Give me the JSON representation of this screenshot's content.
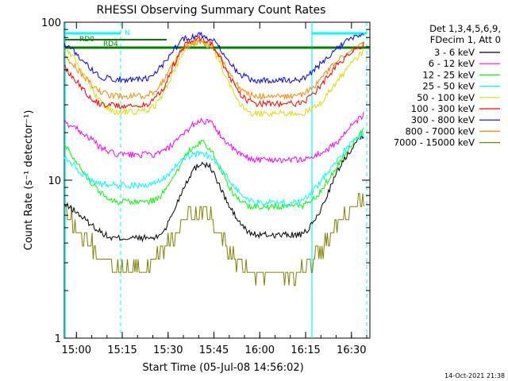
{
  "chart_data": {
    "type": "line",
    "title": "RHESSI Observing Summary Count Rates",
    "xlabel": "Start Time (05-Jul-08 14:56:02)",
    "ylabel": "Count Rate (s⁻¹ detector⁻¹)",
    "yscale": "log",
    "ylim": [
      1,
      100
    ],
    "xlim_minutes": [
      0,
      100
    ],
    "x_ticks": [
      "15:00",
      "15:15",
      "15:30",
      "15:45",
      "16:00",
      "16:15",
      "16:30"
    ],
    "y_ticks": [
      "1",
      "10",
      "100"
    ],
    "legend_header": [
      "Det 1,3,4,5,6,9,",
      "FDecim 1, Att 0"
    ],
    "legend_position": "right",
    "footer_stamp": "14-Oct-2021 21:38",
    "flag_labels": [
      "N",
      "RD0",
      "RD4"
    ],
    "series": [
      {
        "name": "3 - 6 keV",
        "color": "#000000",
        "x": [
          0,
          3,
          6,
          9,
          12,
          15,
          18,
          21,
          24,
          27,
          30,
          33,
          36,
          39,
          42,
          45,
          48,
          51,
          54,
          57,
          60,
          63,
          66,
          69,
          72,
          75,
          78,
          81,
          84,
          87,
          90,
          93,
          96,
          98
        ],
        "y": [
          7.0,
          6.5,
          5.8,
          5.2,
          4.7,
          4.3,
          4.3,
          4.3,
          4.3,
          4.3,
          4.3,
          4.9,
          6.5,
          9.0,
          11.5,
          13.0,
          12.0,
          9.0,
          6.8,
          5.5,
          4.7,
          4.5,
          4.5,
          4.5,
          4.5,
          4.5,
          4.5,
          5.2,
          6.5,
          9.0,
          12.0,
          15.0,
          18.0,
          19.5
        ]
      },
      {
        "name": "6 - 12 keV",
        "color": "#ff00ff",
        "x": [
          0,
          3,
          6,
          9,
          12,
          15,
          18,
          21,
          24,
          27,
          30,
          33,
          36,
          39,
          42,
          45,
          48,
          51,
          54,
          57,
          60,
          63,
          66,
          69,
          72,
          75,
          78,
          81,
          84,
          87,
          90,
          93,
          96,
          98
        ],
        "y": [
          23.0,
          22.0,
          20.0,
          18.0,
          16.0,
          15.0,
          14.5,
          14.5,
          14.5,
          14.5,
          14.5,
          15.5,
          17.0,
          19.5,
          22.5,
          24.0,
          23.0,
          19.5,
          16.5,
          14.8,
          13.8,
          13.5,
          13.5,
          13.5,
          13.5,
          13.5,
          13.5,
          14.0,
          14.8,
          16.0,
          18.0,
          21.0,
          24.0,
          26.0
        ]
      },
      {
        "name": "12 - 25 keV",
        "color": "#00ff00",
        "x": [
          0,
          3,
          6,
          9,
          12,
          15,
          18,
          21,
          24,
          27,
          30,
          33,
          36,
          39,
          42,
          45,
          48,
          51,
          54,
          57,
          60,
          63,
          66,
          69,
          72,
          75,
          78,
          81,
          84,
          87,
          90,
          93,
          96,
          98
        ],
        "y": [
          17.0,
          14.0,
          11.5,
          9.5,
          8.3,
          7.5,
          7.3,
          7.3,
          7.3,
          7.3,
          7.5,
          8.5,
          10.5,
          13.5,
          16.5,
          17.5,
          15.5,
          12.0,
          9.0,
          7.5,
          6.9,
          6.8,
          6.8,
          6.8,
          6.8,
          6.8,
          6.9,
          7.5,
          8.5,
          10.5,
          13.0,
          16.0,
          19.0,
          21.0
        ]
      },
      {
        "name": "25 - 50 keV",
        "color": "#00ffff",
        "x": [
          0,
          3,
          6,
          9,
          12,
          15,
          18,
          21,
          24,
          27,
          30,
          33,
          36,
          39,
          42,
          45,
          48,
          51,
          54,
          57,
          60,
          63,
          66,
          69,
          72,
          75,
          78,
          81,
          84,
          87,
          90,
          93,
          96,
          98
        ],
        "y": [
          14.0,
          12.5,
          11.0,
          10.0,
          9.5,
          9.3,
          9.3,
          9.3,
          9.3,
          9.3,
          9.5,
          10.5,
          12.0,
          13.5,
          14.5,
          14.8,
          14.0,
          12.0,
          10.0,
          8.5,
          7.5,
          7.2,
          7.2,
          7.2,
          7.2,
          7.2,
          7.4,
          8.3,
          9.8,
          11.8,
          14.0,
          16.5,
          18.5,
          19.5
        ]
      },
      {
        "name": "50 - 100 keV",
        "color": "#dddd00",
        "x": [
          0,
          3,
          6,
          9,
          12,
          15,
          18,
          21,
          24,
          27,
          30,
          33,
          36,
          39,
          42,
          45,
          48,
          51,
          54,
          57,
          60,
          63,
          66,
          69,
          72,
          75,
          78,
          81,
          84,
          87,
          90,
          93,
          96,
          98
        ],
        "y": [
          68.0,
          60.0,
          48.0,
          38.0,
          31.0,
          27.5,
          27.0,
          27.0,
          27.0,
          27.5,
          30.0,
          37.0,
          50.0,
          65.0,
          74.0,
          76.0,
          70.0,
          55.0,
          40.0,
          31.0,
          27.0,
          26.5,
          26.5,
          26.5,
          26.5,
          26.5,
          26.5,
          28.0,
          31.0,
          37.0,
          44.0,
          52.0,
          60.0,
          66.0
        ]
      },
      {
        "name": "100 - 300 keV",
        "color": "#ff0000",
        "x": [
          0,
          3,
          6,
          9,
          12,
          15,
          18,
          21,
          24,
          27,
          30,
          33,
          36,
          39,
          42,
          45,
          48,
          51,
          54,
          57,
          60,
          63,
          66,
          69,
          72,
          75,
          78,
          81,
          84,
          87,
          90,
          93,
          96,
          98
        ],
        "y": [
          52.0,
          45.0,
          38.0,
          33.0,
          30.0,
          30.0,
          29.5,
          29.5,
          29.5,
          30.0,
          33.0,
          40.0,
          55.0,
          70.0,
          78.0,
          80.0,
          74.0,
          60.0,
          45.0,
          36.0,
          32.0,
          30.5,
          30.5,
          30.5,
          30.5,
          30.5,
          31.0,
          34.0,
          40.0,
          47.0,
          55.0,
          62.0,
          68.0,
          72.0
        ]
      },
      {
        "name": "300 - 800 keV",
        "color": "#0000ff",
        "x": [
          0,
          3,
          6,
          9,
          12,
          15,
          18,
          21,
          24,
          27,
          30,
          33,
          36,
          39,
          42,
          45,
          48,
          51,
          54,
          57,
          60,
          63,
          66,
          69,
          72,
          75,
          78,
          81,
          84,
          87,
          90,
          93,
          96,
          98
        ],
        "y": [
          72.0,
          66.0,
          58.0,
          50.0,
          45.0,
          44.0,
          43.5,
          43.5,
          43.5,
          44.0,
          48.0,
          56.0,
          68.0,
          78.0,
          82.0,
          83.0,
          79.0,
          68.0,
          56.0,
          48.0,
          44.0,
          43.0,
          43.0,
          43.0,
          43.0,
          43.0,
          44.0,
          48.0,
          55.0,
          62.0,
          70.0,
          77.0,
          82.0,
          85.0
        ]
      },
      {
        "name": "800 - 7000 keV",
        "color": "#ff8800",
        "x": [
          0,
          3,
          6,
          9,
          12,
          15,
          18,
          21,
          24,
          27,
          30,
          33,
          36,
          39,
          42,
          45,
          48,
          51,
          54,
          57,
          60,
          63,
          66,
          69,
          72,
          75,
          78,
          81,
          84,
          87,
          90,
          93,
          96,
          98
        ],
        "y": [
          60.0,
          54.0,
          46.0,
          40.0,
          36.0,
          34.5,
          34.0,
          34.0,
          34.0,
          34.5,
          37.0,
          44.0,
          56.0,
          68.0,
          74.0,
          75.0,
          71.0,
          60.0,
          47.0,
          39.0,
          35.0,
          34.0,
          34.0,
          34.0,
          34.0,
          34.0,
          35.0,
          38.0,
          44.0,
          51.0,
          58.0,
          64.0,
          69.0,
          72.0
        ]
      },
      {
        "name": "7000 - 15000 keV",
        "color": "#808000",
        "x": [
          0,
          3,
          6,
          9,
          12,
          15,
          18,
          21,
          24,
          27,
          30,
          33,
          36,
          39,
          42,
          45,
          48,
          51,
          54,
          57,
          60,
          63,
          66,
          69,
          72,
          75,
          78,
          81,
          84,
          87,
          90,
          93,
          96,
          98
        ],
        "y": [
          6.5,
          5.5,
          4.6,
          3.8,
          3.2,
          2.9,
          2.7,
          2.7,
          2.7,
          2.8,
          3.1,
          3.7,
          4.6,
          5.6,
          6.2,
          6.4,
          5.8,
          4.6,
          3.6,
          2.9,
          2.6,
          2.5,
          2.5,
          2.5,
          2.5,
          2.5,
          2.6,
          3.0,
          3.6,
          4.4,
          5.4,
          6.3,
          7.0,
          7.5
        ]
      }
    ]
  }
}
